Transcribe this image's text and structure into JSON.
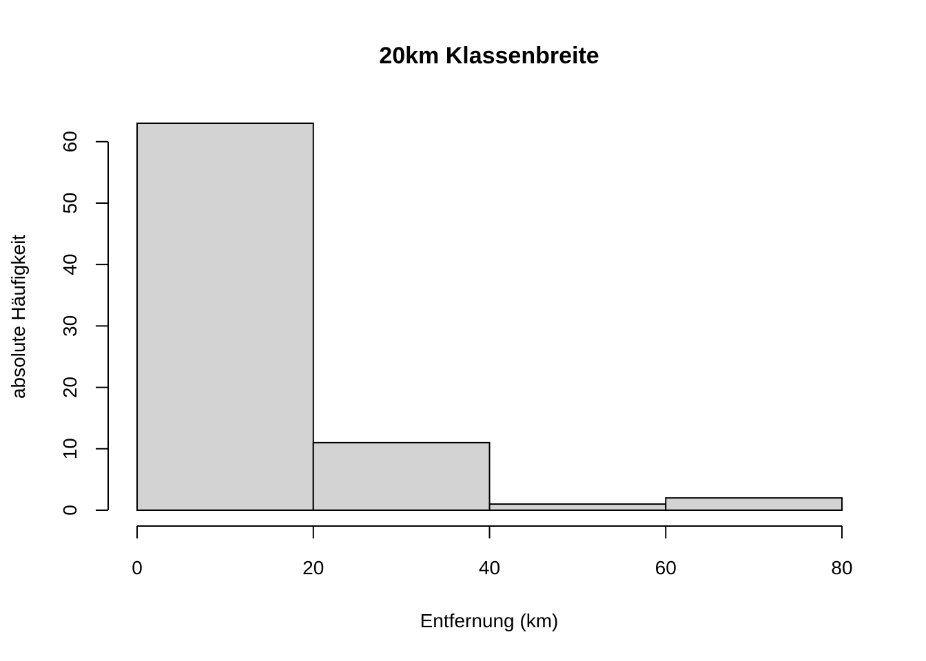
{
  "chart_data": {
    "type": "bar",
    "title": "20km Klassenbreite",
    "xlabel": "Entfernung (km)",
    "ylabel": "absolute Häufigkeit",
    "bins": [
      {
        "from": 0,
        "to": 20,
        "value": 63
      },
      {
        "from": 20,
        "to": 40,
        "value": 11
      },
      {
        "from": 40,
        "to": 60,
        "value": 1
      },
      {
        "from": 60,
        "to": 80,
        "value": 2
      }
    ],
    "xlim": [
      0,
      80
    ],
    "ylim": [
      0,
      63
    ],
    "x_ticks": [
      0,
      20,
      40,
      60,
      80
    ],
    "y_ticks": [
      0,
      10,
      20,
      30,
      40,
      50,
      60
    ],
    "grid": false,
    "colors": {
      "bar_fill": "#d3d3d3",
      "bar_stroke": "#000000"
    }
  }
}
